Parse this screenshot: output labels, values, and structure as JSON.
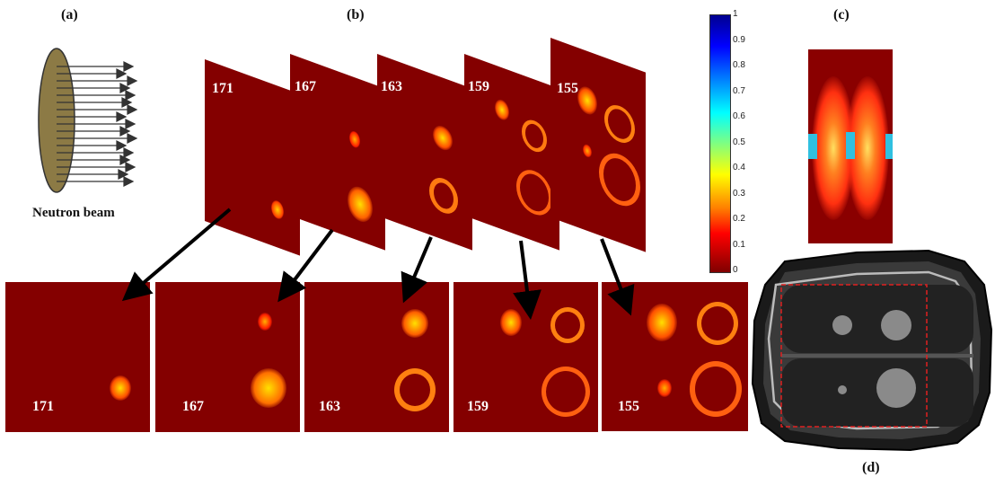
{
  "labels": {
    "a": "(a)",
    "b": "(b)",
    "c": "(c)",
    "d": "(d)"
  },
  "beam_label": "Neutron beam",
  "slices": [
    "171",
    "167",
    "163",
    "159",
    "155"
  ],
  "colorbar": {
    "ticks": [
      "1",
      "0.9",
      "0.8",
      "0.7",
      "0.6",
      "0.5",
      "0.4",
      "0.3",
      "0.2",
      "0.1",
      "0"
    ],
    "colors": [
      "#800000",
      "#ff0000",
      "#ff8000",
      "#ffff00",
      "#80ff80",
      "#00ffff",
      "#0080ff",
      "#0000ff",
      "#000090"
    ]
  }
}
